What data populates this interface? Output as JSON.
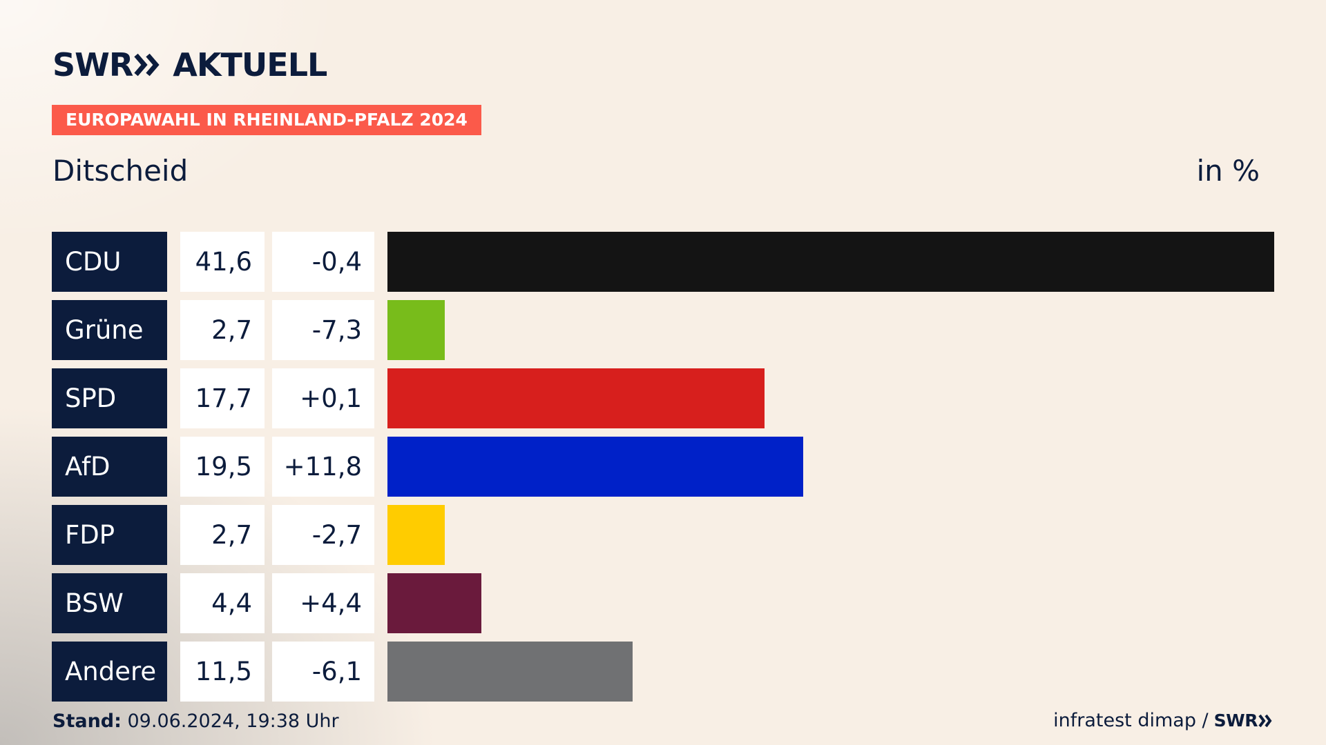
{
  "header": {
    "logo_text": "SWR",
    "logo_suffix": "AKTUELL",
    "tag": "EUROPAWAHL IN RHEINLAND-PFALZ 2024",
    "subtitle": "Ditscheid",
    "unit": "in %"
  },
  "footer": {
    "stand_label": "Stand:",
    "stand_value": " 09.06.2024, 19:38 Uhr",
    "source": "infratest dimap /",
    "source_logo": "SWR"
  },
  "chart_data": {
    "type": "bar",
    "orientation": "horizontal",
    "title": "Ditscheid",
    "unit": "in %",
    "xlim": [
      0,
      41.6
    ],
    "categories": [
      "CDU",
      "Grüne",
      "SPD",
      "AfD",
      "FDP",
      "BSW",
      "Andere"
    ],
    "values": [
      41.6,
      2.7,
      17.7,
      19.5,
      2.7,
      4.4,
      11.5
    ],
    "value_labels": [
      "41,6",
      "2,7",
      "17,7",
      "19,5",
      "2,7",
      "4,4",
      "11,5"
    ],
    "changes": [
      -0.4,
      -7.3,
      0.1,
      11.8,
      -2.7,
      4.4,
      -6.1
    ],
    "change_labels": [
      "-0,4",
      "-7,3",
      "+0,1",
      "+11,8",
      "-2,7",
      "+4,4",
      "-6,1"
    ],
    "colors": [
      "#141414",
      "#78bc1b",
      "#d71f1d",
      "#0021c8",
      "#ffcc00",
      "#6a1a3c",
      "#707173"
    ]
  }
}
